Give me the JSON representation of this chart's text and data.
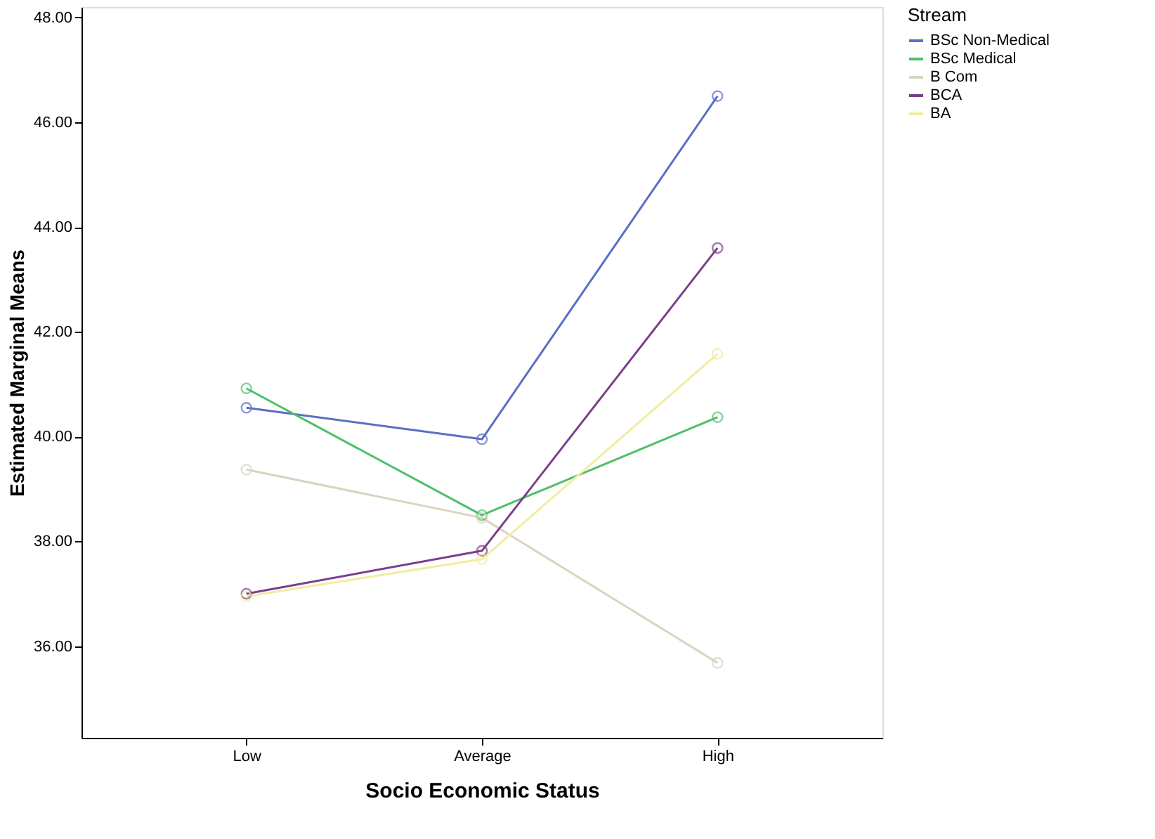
{
  "chart_data": {
    "type": "line",
    "xlabel": "Socio Economic Status",
    "ylabel": "Estimated Marginal Means",
    "legend_title": "Stream",
    "categories": [
      "Low",
      "Average",
      "High"
    ],
    "series": [
      {
        "name": "BSc Non-Medical",
        "color": "#5a6fc4",
        "values": [
          40.55,
          39.95,
          46.5
        ]
      },
      {
        "name": "BSc Medical",
        "color": "#4fbf6a",
        "values": [
          40.92,
          38.5,
          40.37
        ]
      },
      {
        "name": "B Com",
        "color": "#d9d4bf",
        "values": [
          39.37,
          38.45,
          35.68
        ]
      },
      {
        "name": "BCA",
        "color": "#7b3f8a",
        "values": [
          37.0,
          37.82,
          43.6
        ]
      },
      {
        "name": "BA",
        "color": "#f2eda0",
        "values": [
          36.95,
          37.66,
          41.58
        ]
      }
    ],
    "ylim": [
      34.25,
      48.2
    ],
    "yticks": [
      {
        "value": 36,
        "label": "36.00"
      },
      {
        "value": 38,
        "label": "38.00"
      },
      {
        "value": 40,
        "label": "40.00"
      },
      {
        "value": 42,
        "label": "42.00"
      },
      {
        "value": 44,
        "label": "44.00"
      },
      {
        "value": 46,
        "label": "46.00"
      },
      {
        "value": 48,
        "label": "48.00"
      }
    ],
    "grid": false,
    "legend": "top right",
    "marker": "circle",
    "line_style": "solid"
  }
}
